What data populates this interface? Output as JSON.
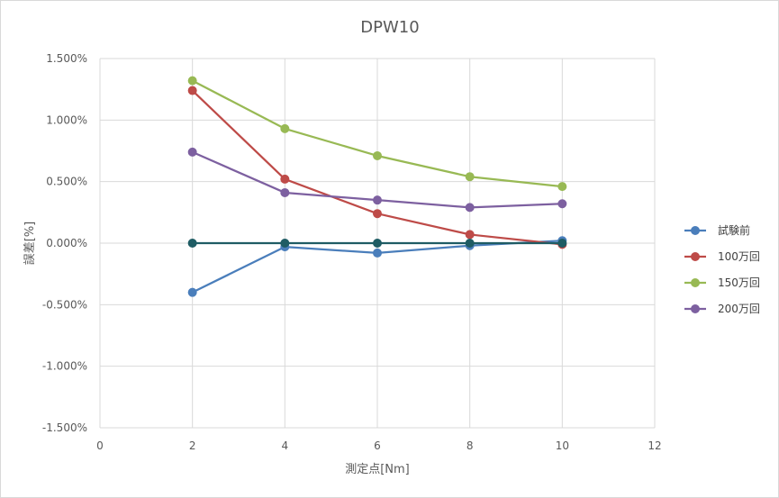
{
  "chart_data": {
    "type": "line",
    "title": "DPW10",
    "xlabel": "測定点[Nm]",
    "ylabel": "誤差[%]",
    "xlim": [
      0,
      12
    ],
    "ylim": [
      -1.5,
      1.5
    ],
    "x_ticks": [
      "0",
      "2",
      "4",
      "6",
      "8",
      "10",
      "12"
    ],
    "y_ticks": [
      "1.500%",
      "1.000%",
      "0.500%",
      "0.000%",
      "-0.500%",
      "-1.000%",
      "-1.500%"
    ],
    "grid": true,
    "legend_position": "right",
    "x": [
      2,
      4,
      6,
      8,
      10
    ],
    "series": [
      {
        "name": "試験前",
        "color": "#4a7ebb",
        "values": [
          -0.4,
          -0.03,
          -0.08,
          -0.02,
          0.02
        ]
      },
      {
        "name": "100万回",
        "color": "#be4b48",
        "values": [
          1.24,
          0.52,
          0.24,
          0.07,
          -0.01
        ]
      },
      {
        "name": "150万回",
        "color": "#98b954",
        "values": [
          1.32,
          0.93,
          0.71,
          0.54,
          0.46
        ]
      },
      {
        "name": "200万回",
        "color": "#7d60a0",
        "values": [
          0.74,
          0.41,
          0.35,
          0.29,
          0.32
        ]
      }
    ],
    "reference_line": {
      "color": "#1f5c64",
      "values": [
        0,
        0,
        0,
        0,
        0
      ]
    }
  }
}
